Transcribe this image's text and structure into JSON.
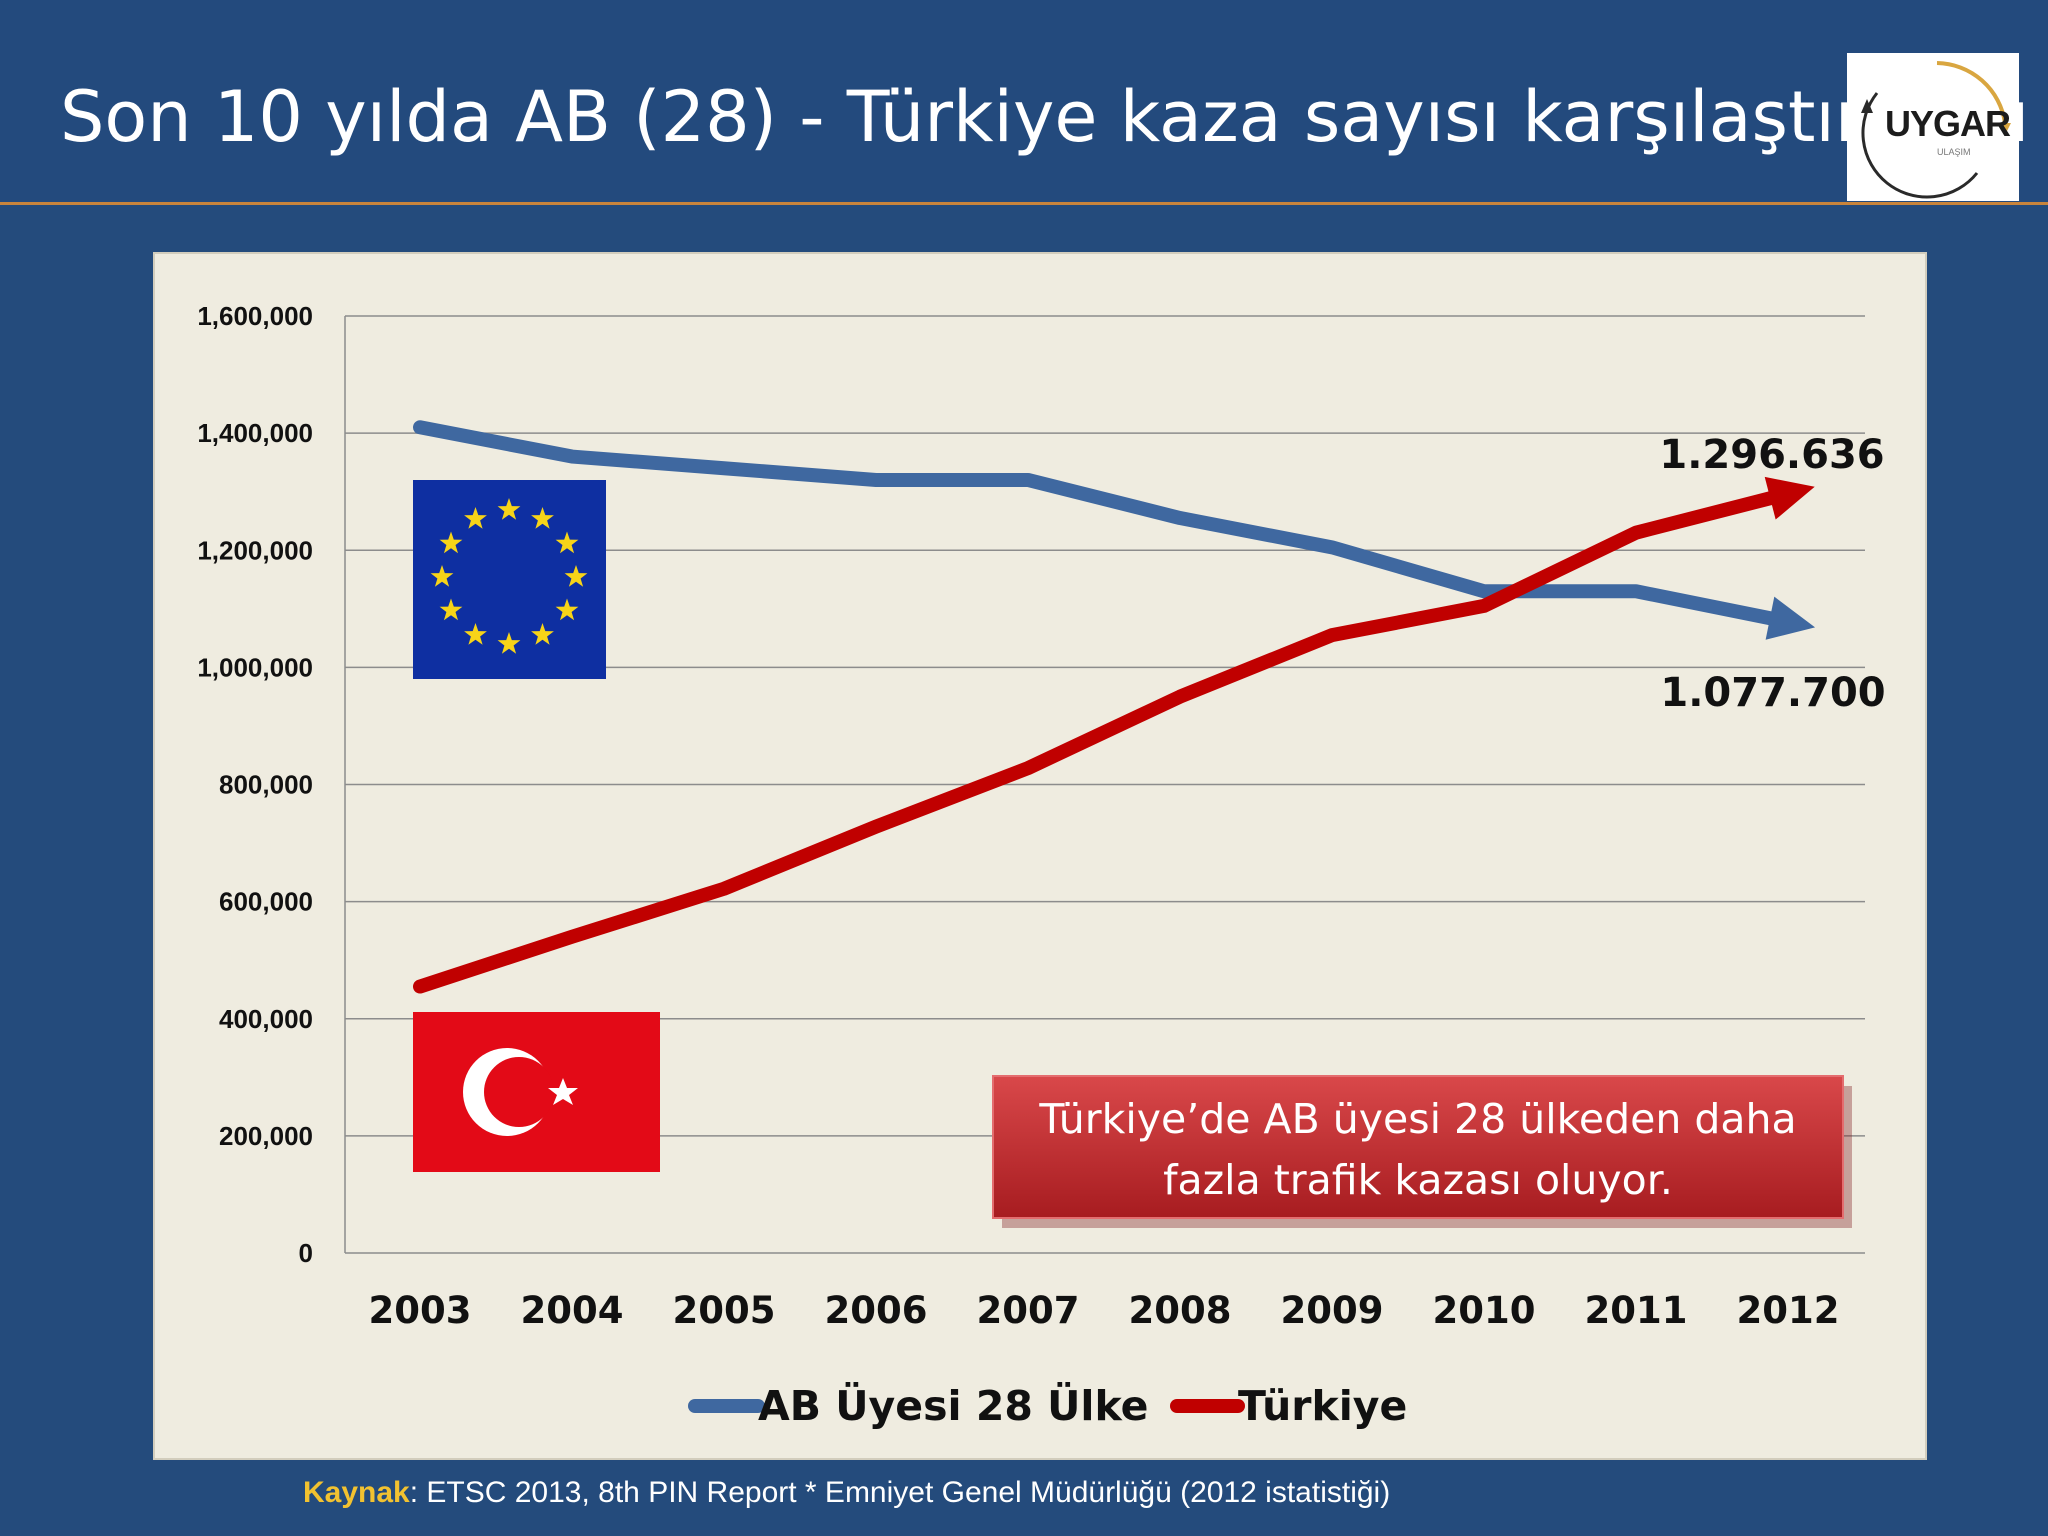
{
  "header": {
    "title": "Son 10 yılda AB (28) - Türkiye kaza sayısı karşılaştırması",
    "logo_text": "UYGAR"
  },
  "colors": {
    "background": "#244b7c",
    "accent_rule": "#c8843c",
    "eu_series": "#3f68a0",
    "tr_series": "#c00000",
    "callout": "#c9262a"
  },
  "chart_data": {
    "type": "line",
    "x": [
      "2003",
      "2004",
      "2005",
      "2006",
      "2007",
      "2008",
      "2009",
      "2010",
      "2011",
      "2012"
    ],
    "ylim": [
      0,
      1600000
    ],
    "yticks": [
      "0",
      "200,000",
      "400,000",
      "600,000",
      "800,000",
      "1,000,000",
      "1,200,000",
      "1,400,000",
      "1,600,000"
    ],
    "grid": true,
    "legend_position": "bottom",
    "series": [
      {
        "name": "AB Üyesi 28 Ülke",
        "color": "#3f68a0",
        "values": [
          1410000,
          1360000,
          1340000,
          1320000,
          1320000,
          1255000,
          1205000,
          1130000,
          1130000,
          1077700
        ]
      },
      {
        "name": "Türkiye",
        "color": "#c00000",
        "values": [
          455000,
          540000,
          622000,
          728000,
          828000,
          950000,
          1055000,
          1105000,
          1230000,
          1296636
        ]
      }
    ],
    "annotations": {
      "tr_end": "1.296.636",
      "eu_end": "1.077.700",
      "callout_line1": "Türkiye’de AB üyesi 28 ülkeden daha",
      "callout_line2": "fazla trafik kazası oluyor."
    }
  },
  "source": {
    "label": "Kaynak",
    "text": ": ETSC 2013, 8th PIN Report * Emniyet Genel Müdürlüğü (2012 istatistiği)"
  }
}
